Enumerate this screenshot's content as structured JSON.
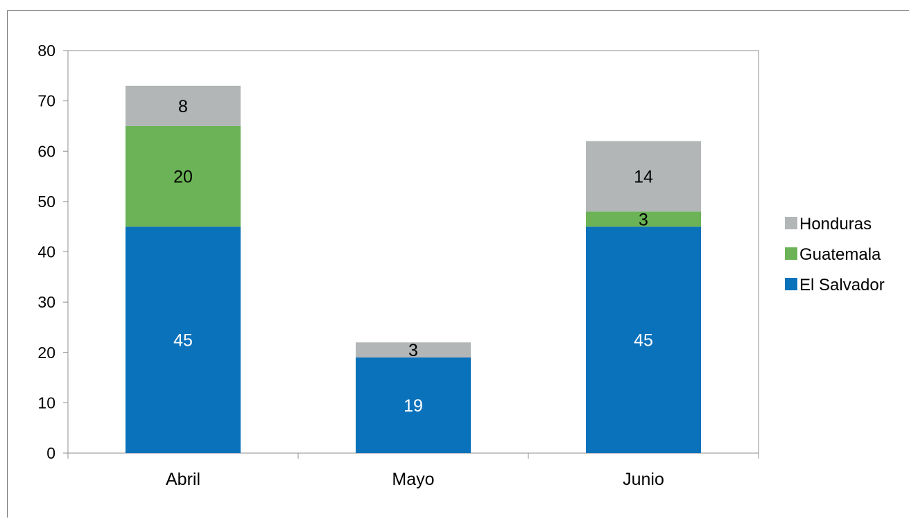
{
  "chart_data": {
    "type": "bar",
    "stacked": true,
    "title": "",
    "xlabel": "",
    "ylabel": "",
    "categories": [
      "Abril",
      "Mayo",
      "Junio"
    ],
    "ylim": [
      0,
      80
    ],
    "yticks": [
      0,
      10,
      20,
      30,
      40,
      50,
      60,
      70,
      80
    ],
    "ytick_labels": [
      "0",
      "10",
      "20",
      "30",
      "40",
      "50",
      "60",
      "70",
      "80"
    ],
    "grid": false,
    "legend_position": "right",
    "series": [
      {
        "name": "El Salvador",
        "color": "#0a71bb",
        "label_color": "#ffffff",
        "values": [
          45,
          19,
          45
        ],
        "value_labels": [
          "45",
          "19",
          "45"
        ]
      },
      {
        "name": "Guatemala",
        "color": "#6bb356",
        "label_color": "#000000",
        "values": [
          20,
          0,
          3
        ],
        "value_labels": [
          "20",
          "",
          "3"
        ]
      },
      {
        "name": "Honduras",
        "color": "#b2b6b7",
        "label_color": "#000000",
        "values": [
          8,
          3,
          14
        ],
        "value_labels": [
          "8",
          "3",
          "14"
        ]
      }
    ],
    "legend": {
      "order": [
        "Honduras",
        "Guatemala",
        "El Salvador"
      ]
    }
  }
}
